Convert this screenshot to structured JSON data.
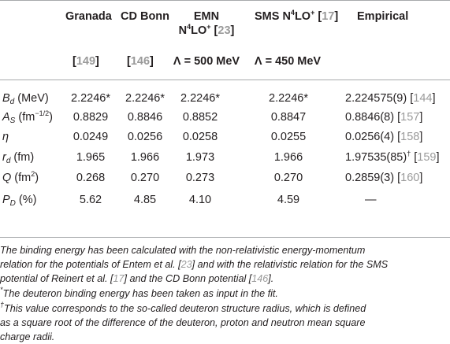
{
  "header": {
    "cols": [
      {
        "line1": "Granada",
        "line2_ref": "149"
      },
      {
        "line1": "CD Bonn",
        "line2_ref": "146"
      },
      {
        "line1": "EMN",
        "line1b": "N",
        "line1b_sup": "4",
        "line1b_rest": "LO",
        "line1b_sup2": "+",
        "line1b_ref": "23",
        "line2": "Λ = 500 MeV"
      },
      {
        "line1": "SMS N",
        "line1_sup": "4",
        "line1_rest": "LO",
        "line1_sup2": "+",
        "line1_ref": "17",
        "line2": "Λ = 450 MeV"
      },
      {
        "line1": "Empirical"
      }
    ]
  },
  "rows": [
    {
      "sym": "B",
      "sub": "d",
      "unit": " (MeV)",
      "vals": [
        "2.2246*",
        "2.2246*",
        "2.2246*",
        "2.2246*"
      ],
      "emp": "2.224575(9)",
      "emp_ref": "144"
    },
    {
      "sym": "A",
      "sub": "S",
      "unit": " (fm",
      "unit_sup": "−1/2",
      "unit_end": ")",
      "vals": [
        "0.8829",
        "0.8846",
        "0.8852",
        "0.8847"
      ],
      "emp": "0.8846(8)",
      "emp_ref": "157"
    },
    {
      "sym": "η",
      "vals": [
        "0.0249",
        "0.0256",
        "0.0258",
        "0.0255"
      ],
      "emp": "0.0256(4)",
      "emp_ref": "158"
    },
    {
      "sym": "r",
      "sub": "d",
      "unit": " (fm)",
      "vals": [
        "1.965",
        "1.966",
        "1.973",
        "1.966"
      ],
      "emp": "1.97535(85)",
      "emp_sup": "†",
      "emp_ref": "159"
    },
    {
      "sym": "Q",
      "unit": " (fm",
      "unit_sup": "2",
      "unit_end": ")",
      "vals": [
        "0.268",
        "0.270",
        "0.273",
        "0.270"
      ],
      "emp": "0.2859(3)",
      "emp_ref": "160"
    },
    {
      "sym": "P",
      "sub": "D",
      "unit": " (%)",
      "vals": [
        "5.62",
        "4.85",
        "4.10",
        "4.59"
      ],
      "emp": "—"
    }
  ],
  "notes": {
    "n1_a": "The binding energy has been calculated with the non-relativistic energy-momentum",
    "n1_b": "relation for the potentials of Entem et al. [",
    "n1_b_ref": "23",
    "n1_b_end": "] and with the relativistic relation for the SMS",
    "n1_c": "potential of Reinert et al. [",
    "n1_c_ref": "17",
    "n1_c_mid": "] and the CD Bonn potential [",
    "n1_c_ref2": "146",
    "n1_c_end": "].",
    "n2_mark": "*",
    "n2": "The deuteron binding energy has been taken as input in the fit.",
    "n3_mark": "†",
    "n3_a": "This value corresponds to the so-called deuteron structure radius, which is defined",
    "n3_b": "as a square root of the difference of the deuteron, proton and neutron mean square",
    "n3_c": "charge radii."
  }
}
